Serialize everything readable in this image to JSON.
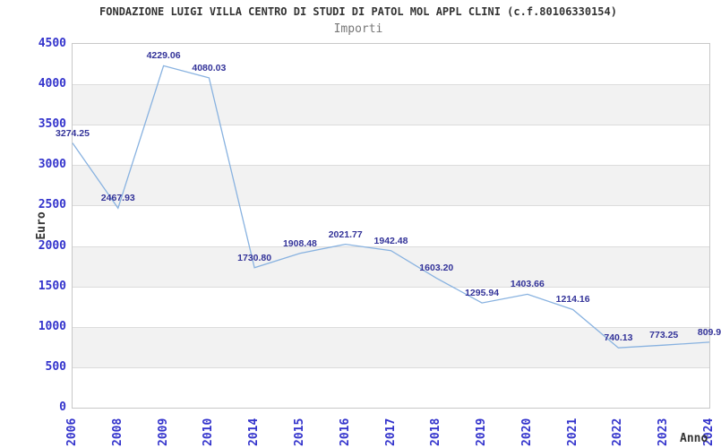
{
  "page": {
    "title": "FONDAZIONE LUIGI VILLA CENTRO DI STUDI DI PATOL MOL APPL CLINI (c.f.80106330154)",
    "subtitle": "Importi"
  },
  "chart_data": {
    "type": "line",
    "title": "FONDAZIONE LUIGI VILLA CENTRO DI STUDI DI PATOL MOL APPL CLINI (c.f.80106330154)",
    "subtitle": "Importi",
    "xlabel": "Anno",
    "ylabel": "Euro",
    "categories": [
      "2006",
      "2008",
      "2009",
      "2010",
      "2014",
      "2015",
      "2016",
      "2017",
      "2018",
      "2019",
      "2020",
      "2021",
      "2022",
      "2023",
      "2024"
    ],
    "series": [
      {
        "name": "Importi",
        "values": [
          3274.25,
          2467.93,
          4229.06,
          4080.03,
          1730.8,
          1908.48,
          2021.77,
          1942.48,
          1603.2,
          1295.94,
          1403.66,
          1214.16,
          740.13,
          773.25,
          809.9
        ],
        "point_labels": [
          "3274.25",
          "2467.93",
          "4229.06",
          "4080.03",
          "1730.80",
          "1908.48",
          "2021.77",
          "1942.48",
          "1603.20",
          "1295.94",
          "1403.66",
          "1214.16",
          "740.13",
          "773.25",
          "809.9"
        ]
      }
    ],
    "ylim": [
      0,
      4500
    ],
    "ytick_interval": 500,
    "ytick_labels": [
      "0",
      "500",
      "1000",
      "1500",
      "2000",
      "2500",
      "3000",
      "3500",
      "4000",
      "4500"
    ],
    "grid": "alternating-horizontal-bands",
    "legend": "none",
    "colors": {
      "line": "#88b2e0",
      "point_label": "#333399",
      "tick_label": "#3333cc",
      "title": "#333333",
      "subtitle": "#777777",
      "axis_title": "#333333",
      "band": "#f2f2f2",
      "gridline": "#dcdcdc",
      "plot_border": "#c8c8c8",
      "background": "#ffffff"
    }
  }
}
